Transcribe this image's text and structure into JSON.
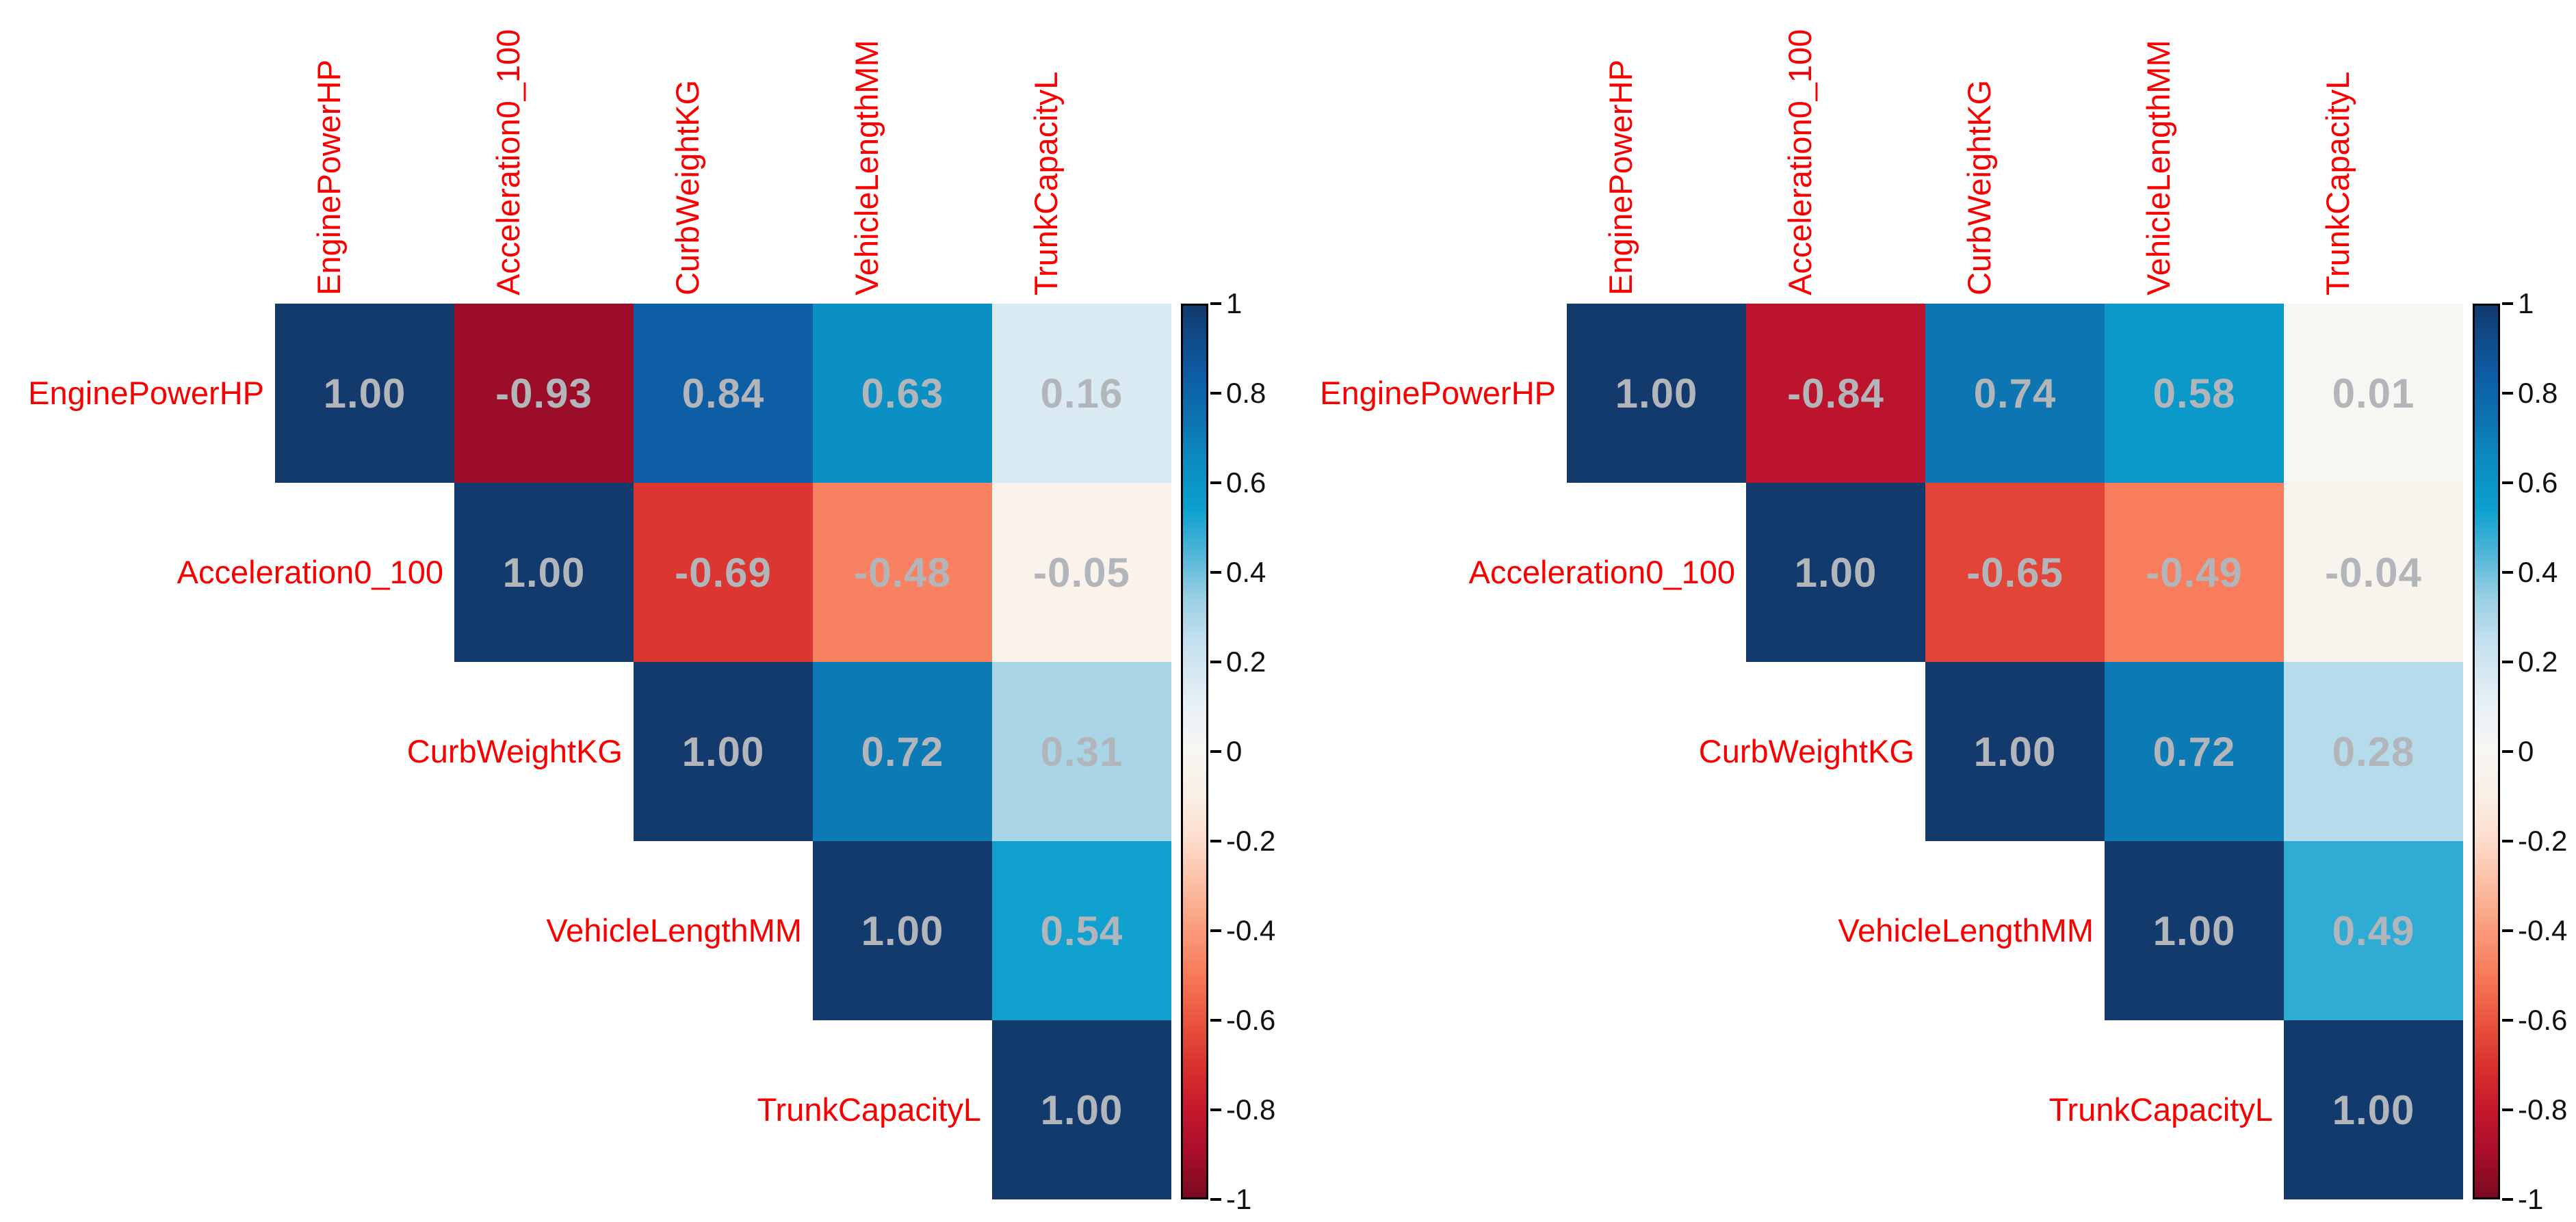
{
  "chart_data": [
    {
      "type": "heatmap",
      "title": "",
      "variables": [
        "EnginePowerHP",
        "Acceleration0_100",
        "CurbWeightKG",
        "VehicleLengthMM",
        "TrunkCapacityL"
      ],
      "matrix": [
        [
          "1.00",
          "-0.93",
          "0.84",
          "0.63",
          "0.16"
        ],
        [
          null,
          "1.00",
          "-0.69",
          "-0.48",
          "-0.05"
        ],
        [
          null,
          null,
          "1.00",
          "0.72",
          "0.31"
        ],
        [
          null,
          null,
          null,
          "1.00",
          "0.54"
        ],
        [
          null,
          null,
          null,
          null,
          "1.00"
        ]
      ],
      "shape": "upper-triangle",
      "zlim": [
        -1,
        1
      ],
      "colorbar_ticks": [
        "1",
        "0.8",
        "0.6",
        "0.4",
        "0.2",
        "0",
        "-0.2",
        "-0.4",
        "-0.6",
        "-0.8",
        "-1"
      ],
      "legend_position": "right"
    },
    {
      "type": "heatmap",
      "title": "",
      "variables": [
        "EnginePowerHP",
        "Acceleration0_100",
        "CurbWeightKG",
        "VehicleLengthMM",
        "TrunkCapacityL"
      ],
      "matrix": [
        [
          "1.00",
          "-0.84",
          "0.74",
          "0.58",
          "0.01"
        ],
        [
          null,
          "1.00",
          "-0.65",
          "-0.49",
          "-0.04"
        ],
        [
          null,
          null,
          "1.00",
          "0.72",
          "0.28"
        ],
        [
          null,
          null,
          null,
          "1.00",
          "0.49"
        ],
        [
          null,
          null,
          null,
          null,
          "1.00"
        ]
      ],
      "shape": "upper-triangle",
      "zlim": [
        -1,
        1
      ],
      "colorbar_ticks": [
        "1",
        "0.8",
        "0.6",
        "0.4",
        "0.2",
        "0",
        "-0.2",
        "-0.4",
        "-0.6",
        "-0.8",
        "-1"
      ],
      "legend_position": "right"
    }
  ],
  "colors": {
    "variable_label_red": "#f80000",
    "value_text_gray": "#b2b6ba",
    "tick_label_black": "#111111",
    "colorbar_frame": "#000000",
    "background": "#ffffff",
    "colormap_stops": [
      [
        -1.0,
        "#7a0a20"
      ],
      [
        -0.9,
        "#a90e2b"
      ],
      [
        -0.8,
        "#c8182c"
      ],
      [
        -0.7,
        "#da3330"
      ],
      [
        -0.6,
        "#ec5540"
      ],
      [
        -0.5,
        "#f87a5a"
      ],
      [
        -0.4,
        "#fa9b7c"
      ],
      [
        -0.3,
        "#fbbda2"
      ],
      [
        -0.2,
        "#fcdccb"
      ],
      [
        -0.1,
        "#faefe5"
      ],
      [
        0.0,
        "#f7f6f3"
      ],
      [
        0.1,
        "#e9f1f6"
      ],
      [
        0.15,
        "#dcebf3"
      ],
      [
        0.25,
        "#c3e0ee"
      ],
      [
        0.35,
        "#97cee3"
      ],
      [
        0.45,
        "#4cb4d8"
      ],
      [
        0.5,
        "#29a9d2"
      ],
      [
        0.55,
        "#0b9fcd"
      ],
      [
        0.65,
        "#0b8cc1"
      ],
      [
        0.75,
        "#0c72b0"
      ],
      [
        0.85,
        "#0d5ca3"
      ],
      [
        1.0,
        "#123a6d"
      ]
    ]
  }
}
